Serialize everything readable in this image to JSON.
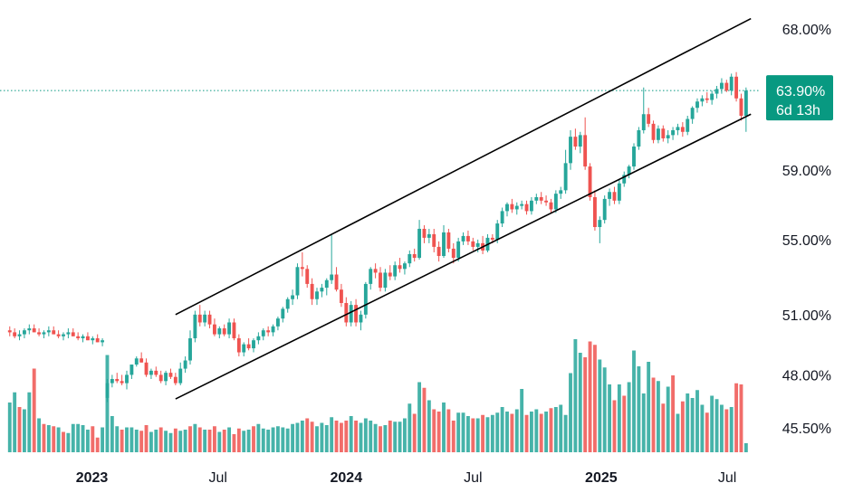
{
  "chart_data": {
    "type": "candlestick",
    "y_scale": "log",
    "ylim_pct": [
      44.0,
      70.0
    ],
    "y_ticks": [
      {
        "value": 68.0,
        "label": "68.00%"
      },
      {
        "value": 59.0,
        "label": "59.00%"
      },
      {
        "value": 55.0,
        "label": "55.00%"
      },
      {
        "value": 51.0,
        "label": "51.00%"
      },
      {
        "value": 48.0,
        "label": "48.00%"
      },
      {
        "value": 45.5,
        "label": "45.50%"
      }
    ],
    "x_ticks": [
      {
        "date": "2023-01-01",
        "label": "2023",
        "bold": true
      },
      {
        "date": "2023-07-01",
        "label": "Jul",
        "bold": false
      },
      {
        "date": "2024-01-01",
        "label": "2024",
        "bold": true
      },
      {
        "date": "2024-07-01",
        "label": "Jul",
        "bold": false
      },
      {
        "date": "2025-01-01",
        "label": "2025",
        "bold": true
      },
      {
        "date": "2025-07-01",
        "label": "Jul",
        "bold": false
      }
    ],
    "xlim_dates": [
      "2022-08-22",
      "2025-08-18"
    ],
    "first_bar_date": "2022-09-05",
    "bar_interval": "1 week",
    "current_price": {
      "value": 63.9,
      "label": "63.90%",
      "countdown": "6d 13h"
    },
    "colors": {
      "up": "#26a69a",
      "down": "#ef5350",
      "channel": "#000000",
      "badge": "#089981"
    },
    "candles": [
      [
        50.2,
        50.4,
        49.9,
        50.1
      ],
      [
        50.1,
        50.3,
        49.8,
        49.9
      ],
      [
        49.9,
        50.2,
        49.7,
        50.0
      ],
      [
        50.0,
        50.3,
        49.8,
        50.2
      ],
      [
        50.2,
        50.5,
        50.0,
        50.3
      ],
      [
        50.3,
        50.5,
        50.1,
        50.1
      ],
      [
        50.1,
        50.3,
        49.9,
        50.0
      ],
      [
        50.0,
        50.2,
        49.8,
        50.1
      ],
      [
        50.1,
        50.4,
        49.9,
        50.2
      ],
      [
        50.2,
        50.4,
        50.0,
        50.0
      ],
      [
        50.0,
        50.2,
        49.8,
        49.9
      ],
      [
        49.9,
        50.1,
        49.7,
        50.0
      ],
      [
        50.0,
        50.3,
        49.8,
        50.1
      ],
      [
        50.1,
        50.3,
        49.9,
        49.9
      ],
      [
        49.9,
        50.1,
        49.7,
        49.8
      ],
      [
        49.8,
        50.0,
        49.6,
        49.9
      ],
      [
        49.9,
        50.1,
        49.7,
        49.7
      ],
      [
        49.7,
        49.9,
        49.5,
        49.8
      ],
      [
        49.8,
        50.0,
        49.6,
        49.6
      ],
      [
        49.6,
        49.8,
        49.4,
        49.7
      ],
      [
        46.9,
        47.8,
        46.7,
        47.6
      ],
      [
        47.6,
        48.0,
        47.4,
        47.8
      ],
      [
        47.8,
        48.1,
        47.6,
        47.7
      ],
      [
        47.7,
        48.0,
        47.5,
        47.6
      ],
      [
        47.6,
        48.2,
        47.3,
        48.0
      ],
      [
        48.0,
        48.4,
        47.8,
        48.5
      ],
      [
        48.5,
        48.9,
        48.4,
        48.8
      ],
      [
        48.8,
        49.1,
        48.6,
        48.6
      ],
      [
        48.6,
        48.8,
        47.9,
        48.0
      ],
      [
        48.0,
        48.3,
        47.8,
        48.2
      ],
      [
        48.2,
        48.4,
        47.9,
        48.0
      ],
      [
        48.0,
        48.2,
        47.6,
        47.7
      ],
      [
        47.7,
        48.2,
        47.5,
        48.1
      ],
      [
        48.1,
        48.3,
        47.8,
        47.9
      ],
      [
        47.9,
        48.1,
        47.5,
        47.6
      ],
      [
        47.6,
        48.6,
        47.5,
        48.3
      ],
      [
        48.3,
        48.9,
        48.1,
        48.7
      ],
      [
        48.7,
        50.2,
        48.5,
        49.8
      ],
      [
        49.8,
        51.2,
        49.6,
        51.0
      ],
      [
        51.0,
        51.5,
        50.4,
        50.6
      ],
      [
        50.6,
        51.2,
        50.4,
        51.0
      ],
      [
        51.0,
        51.2,
        50.3,
        50.5
      ],
      [
        50.5,
        50.8,
        49.9,
        50.0
      ],
      [
        50.0,
        50.4,
        49.8,
        50.3
      ],
      [
        50.3,
        50.5,
        49.9,
        50.0
      ],
      [
        50.0,
        50.8,
        49.8,
        50.6
      ],
      [
        50.6,
        50.8,
        49.7,
        49.8
      ],
      [
        49.8,
        50.0,
        48.9,
        49.1
      ],
      [
        49.1,
        49.6,
        48.9,
        49.5
      ],
      [
        49.5,
        49.8,
        49.2,
        49.3
      ],
      [
        49.3,
        49.8,
        49.1,
        49.7
      ],
      [
        49.7,
        50.1,
        49.5,
        49.9
      ],
      [
        49.9,
        50.3,
        49.7,
        50.2
      ],
      [
        50.2,
        50.4,
        49.9,
        50.1
      ],
      [
        50.1,
        50.5,
        49.9,
        50.4
      ],
      [
        50.4,
        50.9,
        50.2,
        50.8
      ],
      [
        50.8,
        51.4,
        50.6,
        51.3
      ],
      [
        51.3,
        51.9,
        51.1,
        51.8
      ],
      [
        51.8,
        52.3,
        51.5,
        52.0
      ],
      [
        52.0,
        53.7,
        51.8,
        53.5
      ],
      [
        53.5,
        54.3,
        53.0,
        53.4
      ],
      [
        53.4,
        53.6,
        52.4,
        52.6
      ],
      [
        52.6,
        52.9,
        51.5,
        51.8
      ],
      [
        51.8,
        52.4,
        51.5,
        52.2
      ],
      [
        52.2,
        52.6,
        51.9,
        52.4
      ],
      [
        52.4,
        52.9,
        52.0,
        52.8
      ],
      [
        52.8,
        55.3,
        52.6,
        53.1
      ],
      [
        53.1,
        53.5,
        52.2,
        52.3
      ],
      [
        52.3,
        52.6,
        51.4,
        51.6
      ],
      [
        51.6,
        51.9,
        50.4,
        50.6
      ],
      [
        50.6,
        51.7,
        50.4,
        51.5
      ],
      [
        51.5,
        51.8,
        50.4,
        50.6
      ],
      [
        50.6,
        51.2,
        50.2,
        51.0
      ],
      [
        51.0,
        52.7,
        50.8,
        52.6
      ],
      [
        52.6,
        53.5,
        52.3,
        53.4
      ],
      [
        53.4,
        53.7,
        52.9,
        53.2
      ],
      [
        53.2,
        53.5,
        52.2,
        52.4
      ],
      [
        52.4,
        53.4,
        52.2,
        53.2
      ],
      [
        53.2,
        53.6,
        52.8,
        53.0
      ],
      [
        53.0,
        53.8,
        52.8,
        53.6
      ],
      [
        53.6,
        54.0,
        53.2,
        53.4
      ],
      [
        53.4,
        53.8,
        53.1,
        53.7
      ],
      [
        53.7,
        54.4,
        53.5,
        54.2
      ],
      [
        54.2,
        54.5,
        53.8,
        54.0
      ],
      [
        54.0,
        56.1,
        53.9,
        55.6
      ],
      [
        55.6,
        55.8,
        54.8,
        55.1
      ],
      [
        55.1,
        55.6,
        54.8,
        55.3
      ],
      [
        55.3,
        55.6,
        54.3,
        54.6
      ],
      [
        54.6,
        54.9,
        53.8,
        54.1
      ],
      [
        54.1,
        55.8,
        54.0,
        55.4
      ],
      [
        55.4,
        55.6,
        54.3,
        54.5
      ],
      [
        54.5,
        54.8,
        53.7,
        54.0
      ],
      [
        54.0,
        55.1,
        53.8,
        54.9
      ],
      [
        54.9,
        55.4,
        54.7,
        55.2
      ],
      [
        55.2,
        55.5,
        54.7,
        54.9
      ],
      [
        54.9,
        55.1,
        54.4,
        54.6
      ],
      [
        54.6,
        55.0,
        54.3,
        54.8
      ],
      [
        54.8,
        55.2,
        54.2,
        54.4
      ],
      [
        54.4,
        55.3,
        54.3,
        55.1
      ],
      [
        55.1,
        55.3,
        54.8,
        55.0
      ],
      [
        55.0,
        56.1,
        54.8,
        55.9
      ],
      [
        55.9,
        56.8,
        55.7,
        56.6
      ],
      [
        56.6,
        57.1,
        56.3,
        57.0
      ],
      [
        57.0,
        57.3,
        56.5,
        56.7
      ],
      [
        56.7,
        57.1,
        56.4,
        56.9
      ],
      [
        56.9,
        57.2,
        56.7,
        57.0
      ],
      [
        57.0,
        57.2,
        56.4,
        56.6
      ],
      [
        56.6,
        57.4,
        56.4,
        57.2
      ],
      [
        57.2,
        57.6,
        57.0,
        57.4
      ],
      [
        57.4,
        57.7,
        57.0,
        57.2
      ],
      [
        57.2,
        57.5,
        56.9,
        57.1
      ],
      [
        57.1,
        57.3,
        56.5,
        56.7
      ],
      [
        56.7,
        57.8,
        56.5,
        57.6
      ],
      [
        57.6,
        58.0,
        57.3,
        57.8
      ],
      [
        57.8,
        60.2,
        57.6,
        59.4
      ],
      [
        59.4,
        61.4,
        59.0,
        61.0
      ],
      [
        61.0,
        61.5,
        60.2,
        60.4
      ],
      [
        60.4,
        61.3,
        60.0,
        61.1
      ],
      [
        61.1,
        62.2,
        59.0,
        59.2
      ],
      [
        59.2,
        59.4,
        57.2,
        57.4
      ],
      [
        57.4,
        57.8,
        55.5,
        55.7
      ],
      [
        55.7,
        56.3,
        54.8,
        56.1
      ],
      [
        56.1,
        57.5,
        55.9,
        57.3
      ],
      [
        57.3,
        57.9,
        56.9,
        57.7
      ],
      [
        57.7,
        58.0,
        57.0,
        57.2
      ],
      [
        57.2,
        58.4,
        57.0,
        58.2
      ],
      [
        58.2,
        58.9,
        58.0,
        58.7
      ],
      [
        58.7,
        59.3,
        58.5,
        59.2
      ],
      [
        59.2,
        60.6,
        59.0,
        60.4
      ],
      [
        60.4,
        61.6,
        60.2,
        61.4
      ],
      [
        61.4,
        64.1,
        61.2,
        62.4
      ],
      [
        62.4,
        62.8,
        61.6,
        61.8
      ],
      [
        61.8,
        62.0,
        60.6,
        60.8
      ],
      [
        60.8,
        61.7,
        60.6,
        61.5
      ],
      [
        61.5,
        61.7,
        60.7,
        60.9
      ],
      [
        60.9,
        61.4,
        60.6,
        61.1
      ],
      [
        61.1,
        61.6,
        60.8,
        61.4
      ],
      [
        61.4,
        61.8,
        61.1,
        61.6
      ],
      [
        61.6,
        61.9,
        61.0,
        61.3
      ],
      [
        61.3,
        62.3,
        61.1,
        62.1
      ],
      [
        62.1,
        62.9,
        61.8,
        62.8
      ],
      [
        62.8,
        63.4,
        62.5,
        63.2
      ],
      [
        63.2,
        63.6,
        62.9,
        63.4
      ],
      [
        63.4,
        63.8,
        63.1,
        63.3
      ],
      [
        63.3,
        63.9,
        63.0,
        63.7
      ],
      [
        63.7,
        64.2,
        63.4,
        64.0
      ],
      [
        64.0,
        64.7,
        63.7,
        64.4
      ],
      [
        64.4,
        64.6,
        63.8,
        63.9
      ],
      [
        63.9,
        65.0,
        63.6,
        64.8
      ],
      [
        64.8,
        65.1,
        63.2,
        63.4
      ],
      [
        63.4,
        63.7,
        62.0,
        62.3
      ],
      [
        62.3,
        64.1,
        61.3,
        63.9
      ]
    ],
    "volumes": [
      [
        0.44,
        1
      ],
      [
        0.53,
        1
      ],
      [
        0.4,
        0
      ],
      [
        0.38,
        1
      ],
      [
        0.53,
        1
      ],
      [
        0.74,
        0
      ],
      [
        0.3,
        1
      ],
      [
        0.25,
        0
      ],
      [
        0.24,
        1
      ],
      [
        0.23,
        0
      ],
      [
        0.22,
        1
      ],
      [
        0.18,
        0
      ],
      [
        0.17,
        1
      ],
      [
        0.25,
        1
      ],
      [
        0.25,
        1
      ],
      [
        0.24,
        1
      ],
      [
        0.2,
        1
      ],
      [
        0.23,
        0
      ],
      [
        0.13,
        0
      ],
      [
        0.22,
        1
      ],
      [
        0.86,
        1
      ],
      [
        0.32,
        1
      ],
      [
        0.23,
        1
      ],
      [
        0.2,
        0
      ],
      [
        0.22,
        1
      ],
      [
        0.22,
        1
      ],
      [
        0.2,
        1
      ],
      [
        0.19,
        0
      ],
      [
        0.24,
        0
      ],
      [
        0.18,
        1
      ],
      [
        0.2,
        1
      ],
      [
        0.22,
        0
      ],
      [
        0.19,
        1
      ],
      [
        0.17,
        1
      ],
      [
        0.21,
        0
      ],
      [
        0.19,
        1
      ],
      [
        0.2,
        1
      ],
      [
        0.23,
        0
      ],
      [
        0.25,
        1
      ],
      [
        0.22,
        0
      ],
      [
        0.2,
        1
      ],
      [
        0.2,
        0
      ],
      [
        0.23,
        0
      ],
      [
        0.18,
        1
      ],
      [
        0.2,
        0
      ],
      [
        0.22,
        1
      ],
      [
        0.16,
        0
      ],
      [
        0.21,
        0
      ],
      [
        0.19,
        1
      ],
      [
        0.2,
        1
      ],
      [
        0.23,
        0
      ],
      [
        0.25,
        1
      ],
      [
        0.21,
        1
      ],
      [
        0.2,
        1
      ],
      [
        0.22,
        1
      ],
      [
        0.23,
        1
      ],
      [
        0.22,
        1
      ],
      [
        0.21,
        1
      ],
      [
        0.25,
        1
      ],
      [
        0.26,
        1
      ],
      [
        0.28,
        1
      ],
      [
        0.3,
        0
      ],
      [
        0.27,
        0
      ],
      [
        0.23,
        1
      ],
      [
        0.26,
        1
      ],
      [
        0.24,
        1
      ],
      [
        0.31,
        1
      ],
      [
        0.28,
        0
      ],
      [
        0.26,
        0
      ],
      [
        0.28,
        0
      ],
      [
        0.32,
        1
      ],
      [
        0.28,
        0
      ],
      [
        0.26,
        1
      ],
      [
        0.3,
        1
      ],
      [
        0.28,
        1
      ],
      [
        0.25,
        1
      ],
      [
        0.23,
        0
      ],
      [
        0.24,
        1
      ],
      [
        0.28,
        0
      ],
      [
        0.27,
        1
      ],
      [
        0.27,
        1
      ],
      [
        0.3,
        1
      ],
      [
        0.43,
        1
      ],
      [
        0.34,
        0
      ],
      [
        0.62,
        1
      ],
      [
        0.57,
        0
      ],
      [
        0.46,
        1
      ],
      [
        0.38,
        0
      ],
      [
        0.36,
        0
      ],
      [
        0.44,
        1
      ],
      [
        0.38,
        0
      ],
      [
        0.28,
        0
      ],
      [
        0.35,
        1
      ],
      [
        0.35,
        1
      ],
      [
        0.32,
        1
      ],
      [
        0.3,
        0
      ],
      [
        0.3,
        1
      ],
      [
        0.33,
        0
      ],
      [
        0.31,
        1
      ],
      [
        0.33,
        1
      ],
      [
        0.35,
        1
      ],
      [
        0.4,
        1
      ],
      [
        0.36,
        1
      ],
      [
        0.34,
        0
      ],
      [
        0.38,
        1
      ],
      [
        0.56,
        1
      ],
      [
        0.33,
        0
      ],
      [
        0.36,
        1
      ],
      [
        0.38,
        1
      ],
      [
        0.34,
        0
      ],
      [
        0.36,
        1
      ],
      [
        0.39,
        0
      ],
      [
        0.4,
        1
      ],
      [
        0.42,
        1
      ],
      [
        0.33,
        1
      ],
      [
        0.7,
        1
      ],
      [
        1.0,
        1
      ],
      [
        0.88,
        1
      ],
      [
        0.84,
        0
      ],
      [
        0.98,
        0
      ],
      [
        0.95,
        0
      ],
      [
        0.82,
        1
      ],
      [
        0.75,
        1
      ],
      [
        0.6,
        1
      ],
      [
        0.46,
        0
      ],
      [
        0.6,
        1
      ],
      [
        0.5,
        0
      ],
      [
        0.62,
        1
      ],
      [
        0.9,
        1
      ],
      [
        0.76,
        1
      ],
      [
        0.52,
        1
      ],
      [
        0.8,
        1
      ],
      [
        0.66,
        0
      ],
      [
        0.63,
        1
      ],
      [
        0.43,
        0
      ],
      [
        0.58,
        1
      ],
      [
        0.68,
        0
      ],
      [
        0.34,
        1
      ],
      [
        0.45,
        0
      ],
      [
        0.52,
        1
      ],
      [
        0.48,
        1
      ],
      [
        0.55,
        1
      ],
      [
        0.42,
        1
      ],
      [
        0.35,
        0
      ],
      [
        0.5,
        1
      ],
      [
        0.47,
        1
      ],
      [
        0.42,
        1
      ],
      [
        0.38,
        0
      ],
      [
        0.4,
        1
      ],
      [
        0.61,
        0
      ],
      [
        0.6,
        0
      ],
      [
        0.08,
        1
      ]
    ],
    "channel": {
      "upper": [
        {
          "date": "2023-05-01",
          "value": 51.0
        },
        {
          "date": "2025-08-04",
          "value": 68.7
        }
      ],
      "lower": [
        {
          "date": "2023-05-01",
          "value": 46.85
        },
        {
          "date": "2025-08-04",
          "value": 62.4
        }
      ]
    }
  }
}
